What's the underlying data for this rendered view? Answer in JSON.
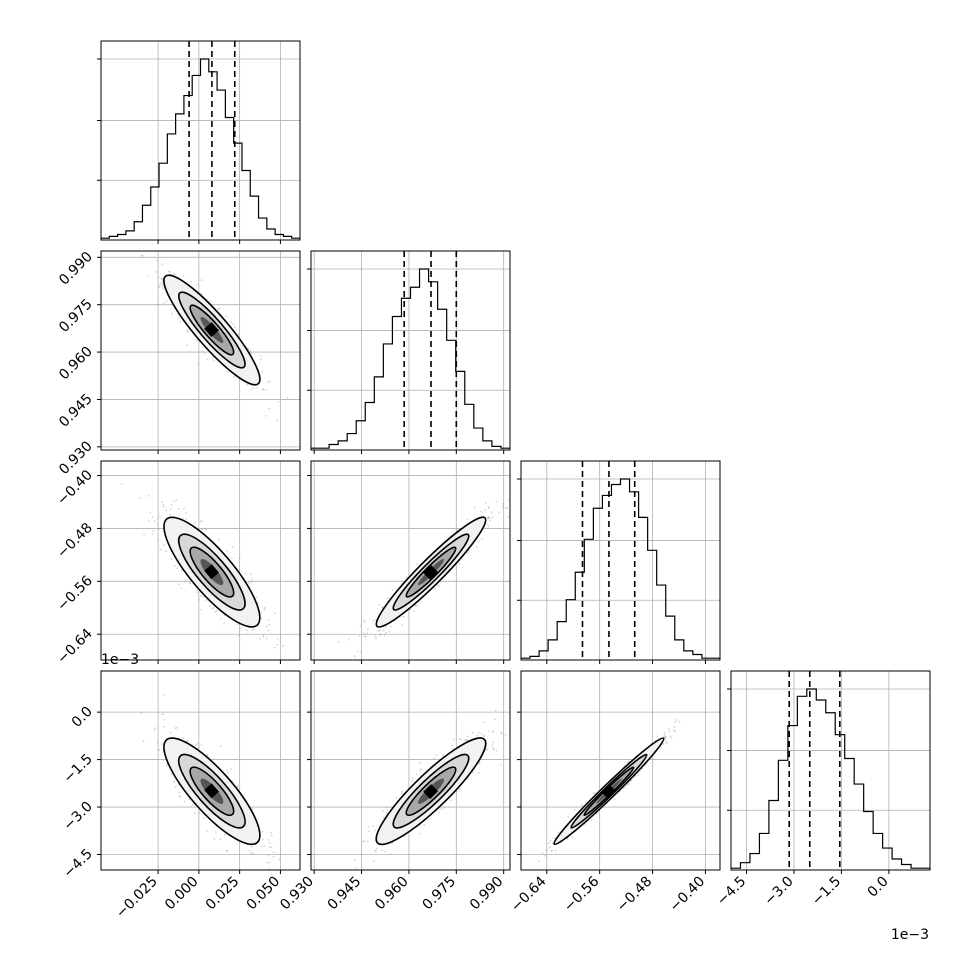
{
  "chart_data": {
    "type": "corner",
    "parameters": [
      {
        "ticks": [
          "−0.025",
          "0.000",
          "0.025",
          "0.050"
        ],
        "tick_values": [
          -0.025,
          0.0,
          0.025,
          0.05
        ],
        "range": [
          -0.06,
          0.062
        ],
        "quantiles": [
          -0.006,
          0.008,
          0.022
        ],
        "scale_label": ""
      },
      {
        "ticks": [
          "0.930",
          "0.945",
          "0.960",
          "0.975",
          "0.990"
        ],
        "tick_values": [
          0.93,
          0.945,
          0.96,
          0.975,
          0.99
        ],
        "range": [
          0.929,
          0.992
        ],
        "quantiles": [
          0.9585,
          0.967,
          0.975
        ],
        "scale_label": ""
      },
      {
        "ticks": [
          "−0.64",
          "−0.56",
          "−0.48",
          "−0.40"
        ],
        "tick_values": [
          -0.64,
          -0.56,
          -0.48,
          -0.4
        ],
        "range": [
          -0.679,
          -0.378
        ],
        "quantiles": [
          -0.586,
          -0.546,
          -0.507
        ],
        "scale_label": ""
      },
      {
        "ticks": [
          "−4.5",
          "−3.0",
          "−1.5",
          "0.0"
        ],
        "tick_values": [
          -4.5,
          -3.0,
          -1.5,
          0.0
        ],
        "range": [
          -4.99,
          1.3
        ],
        "quantiles": [
          -3.15,
          -2.5,
          -1.55
        ],
        "scale_label": "1e−3"
      }
    ],
    "histograms": [
      [
        0.01,
        0.02,
        0.03,
        0.05,
        0.1,
        0.19,
        0.29,
        0.42,
        0.58,
        0.69,
        0.79,
        0.9,
        0.99,
        0.92,
        0.82,
        0.67,
        0.53,
        0.38,
        0.24,
        0.12,
        0.06,
        0.03,
        0.02,
        0.01
      ],
      [
        0.01,
        0.01,
        0.03,
        0.05,
        0.09,
        0.16,
        0.26,
        0.4,
        0.58,
        0.73,
        0.83,
        0.89,
        0.99,
        0.92,
        0.77,
        0.6,
        0.43,
        0.25,
        0.12,
        0.05,
        0.02,
        0.01
      ],
      [
        0.01,
        0.02,
        0.05,
        0.11,
        0.21,
        0.33,
        0.48,
        0.66,
        0.83,
        0.9,
        0.96,
        0.99,
        0.92,
        0.78,
        0.6,
        0.41,
        0.24,
        0.11,
        0.05,
        0.03,
        0.01,
        0.01
      ],
      [
        0.01,
        0.04,
        0.09,
        0.2,
        0.38,
        0.6,
        0.79,
        0.95,
        0.99,
        0.93,
        0.86,
        0.74,
        0.61,
        0.47,
        0.32,
        0.2,
        0.12,
        0.06,
        0.03,
        0.01,
        0.01
      ]
    ],
    "pair_correlations": {
      "1-0": -0.9,
      "2-0": -0.83,
      "2-1": 0.95,
      "3-0": -0.83,
      "3-1": 0.9,
      "3-2": 0.985
    },
    "colors": {
      "axes": "#000000",
      "grid": "#b0b0b0",
      "points": "#a0a0a0",
      "density_dark": "#000000"
    }
  }
}
